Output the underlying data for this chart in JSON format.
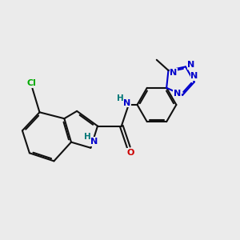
{
  "bg_color": "#ebebeb",
  "bond_color": "#111111",
  "N_color": "#0000cc",
  "O_color": "#cc0000",
  "Cl_color": "#00aa00",
  "H_color": "#007777",
  "lw": 1.5,
  "fs": 8.0,
  "xlim": [
    0.3,
    8.5
  ],
  "ylim": [
    0.8,
    6.5
  ],
  "figsize": [
    3.0,
    3.0
  ],
  "dpi": 100
}
